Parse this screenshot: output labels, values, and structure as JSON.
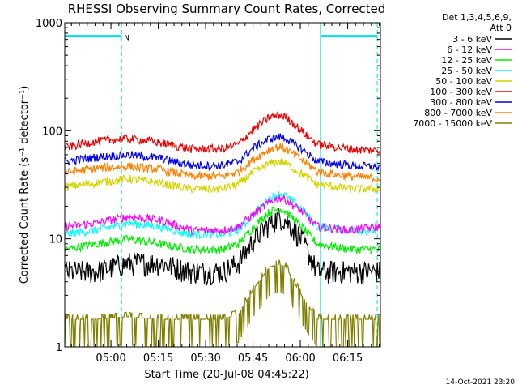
{
  "chart_data": {
    "type": "line",
    "title": "RHESSI Observing Summary Count Rates, Corrected",
    "xlabel": "Start Time (20-Jul-08 04:45:22)",
    "ylabel": "Corrected Count Rate (s⁻¹ detector⁻¹)",
    "y_scale": "log",
    "ylim": [
      1,
      1000
    ],
    "y_ticks": [
      {
        "value": 1,
        "label": "1"
      },
      {
        "value": 10,
        "label": "10"
      },
      {
        "value": 100,
        "label": "100"
      },
      {
        "value": 1000,
        "label": "1000"
      }
    ],
    "x_range_minutes": [
      0,
      100
    ],
    "x_ticks": [
      {
        "minute": 14.63,
        "label": "05:00"
      },
      {
        "minute": 29.63,
        "label": "05:15"
      },
      {
        "minute": 44.63,
        "label": "05:30"
      },
      {
        "minute": 59.63,
        "label": "05:45"
      },
      {
        "minute": 74.63,
        "label": "06:00"
      },
      {
        "minute": 89.63,
        "label": "06:15"
      }
    ],
    "legend_header": [
      "Det 1,3,4,5,6,9,",
      "Att 0"
    ],
    "series": [
      {
        "name": "3 - 6 keV",
        "color": "#000000",
        "x": [
          0,
          10,
          20,
          30,
          40,
          50,
          55,
          60,
          65,
          68,
          70,
          75,
          80,
          90,
          100
        ],
        "y": [
          5,
          5,
          6,
          6,
          5,
          5,
          6,
          10,
          14,
          16,
          15,
          10,
          5,
          5,
          5
        ]
      },
      {
        "name": "6 - 12 keV",
        "color": "#ff00ff",
        "x": [
          0,
          10,
          20,
          30,
          40,
          50,
          55,
          60,
          65,
          68,
          70,
          75,
          80,
          90,
          100
        ],
        "y": [
          13,
          14,
          16,
          15,
          12,
          12,
          13,
          17,
          22,
          24,
          23,
          18,
          13,
          12,
          13
        ]
      },
      {
        "name": "12 - 25 keV",
        "color": "#00ee00",
        "x": [
          0,
          10,
          20,
          30,
          40,
          50,
          55,
          60,
          65,
          68,
          70,
          75,
          80,
          90,
          100
        ],
        "y": [
          8,
          9,
          10,
          9,
          8,
          8,
          9,
          13,
          18,
          19,
          18,
          13,
          9,
          8,
          8
        ]
      },
      {
        "name": "25 - 50 keV",
        "color": "#00ffff",
        "x": [
          0,
          10,
          20,
          30,
          40,
          50,
          55,
          60,
          65,
          68,
          70,
          75,
          80,
          90,
          100
        ],
        "y": [
          11,
          12,
          14,
          13,
          11,
          11,
          12,
          17,
          24,
          26,
          25,
          19,
          13,
          12,
          12
        ]
      },
      {
        "name": "50 - 100 keV",
        "color": "#d4d400",
        "x": [
          0,
          10,
          20,
          30,
          40,
          50,
          55,
          60,
          65,
          68,
          70,
          75,
          80,
          90,
          100
        ],
        "y": [
          30,
          33,
          36,
          33,
          29,
          29,
          32,
          42,
          50,
          52,
          50,
          40,
          32,
          29,
          29
        ]
      },
      {
        "name": "100 - 300 keV",
        "color": "#ee0000",
        "x": [
          0,
          10,
          20,
          30,
          40,
          50,
          55,
          60,
          65,
          68,
          70,
          75,
          80,
          90,
          100
        ],
        "y": [
          70,
          80,
          85,
          78,
          68,
          68,
          75,
          105,
          135,
          140,
          135,
          100,
          75,
          68,
          65
        ]
      },
      {
        "name": "300 - 800 keV",
        "color": "#0000ee",
        "x": [
          0,
          10,
          20,
          30,
          40,
          50,
          55,
          60,
          65,
          68,
          70,
          75,
          80,
          90,
          100
        ],
        "y": [
          52,
          57,
          60,
          56,
          48,
          48,
          52,
          70,
          85,
          88,
          85,
          68,
          52,
          48,
          46
        ]
      },
      {
        "name": "800 - 7000 keV",
        "color": "#ff8000",
        "x": [
          0,
          10,
          20,
          30,
          40,
          50,
          55,
          60,
          65,
          68,
          70,
          75,
          80,
          90,
          100
        ],
        "y": [
          41,
          45,
          47,
          44,
          38,
          38,
          42,
          55,
          68,
          72,
          68,
          54,
          42,
          38,
          36
        ]
      },
      {
        "name": "7000 - 15000 keV",
        "color": "#808000",
        "x": [
          0,
          10,
          20,
          30,
          40,
          50,
          55,
          60,
          65,
          68,
          70,
          75,
          80,
          90,
          100
        ],
        "y": [
          1.8,
          1.8,
          1.9,
          1.8,
          1.8,
          1.8,
          2,
          3.5,
          5.5,
          5.8,
          5.5,
          3,
          1.8,
          1.8,
          1.8
        ]
      }
    ],
    "attenuator_marks": [
      {
        "x_start": 0,
        "x_end": 18,
        "y": 750,
        "label": "N"
      },
      {
        "x_start": 81,
        "x_end": 99,
        "y": 750,
        "label": ""
      }
    ],
    "night_lines_minutes": [
      0,
      18,
      81,
      99
    ],
    "timestamp": "14-Oct-2021 23:20"
  }
}
